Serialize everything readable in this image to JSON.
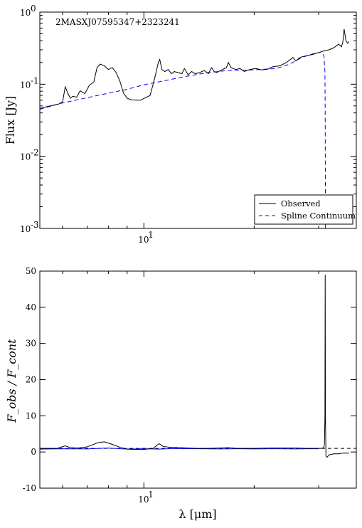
{
  "chart_data": [
    {
      "type": "line",
      "annotation": "2MASXJ07595347+2323241",
      "ylabel": "Flux [Jy]",
      "xscale": "log",
      "yscale": "log",
      "xlim": [
        5.2,
        38
      ],
      "ylim": [
        0.001,
        1
      ],
      "x_ticks": [
        10
      ],
      "x_tick_labels": [
        "10¹"
      ],
      "y_ticks": [
        0.001,
        0.01,
        0.1,
        1
      ],
      "y_tick_labels": [
        [
          "10",
          "-3"
        ],
        [
          "10",
          "-2"
        ],
        [
          "10",
          "-1"
        ],
        [
          "10",
          "0"
        ]
      ],
      "legend": "bottom-right",
      "series": [
        {
          "name": "Observed",
          "color": "#000000",
          "style": "solid",
          "x": [
            5.2,
            5.45,
            5.55,
            5.65,
            5.75,
            5.85,
            6.0,
            6.1,
            6.2,
            6.3,
            6.4,
            6.55,
            6.7,
            6.9,
            7.1,
            7.3,
            7.45,
            7.6,
            7.8,
            8.0,
            8.2,
            8.4,
            8.6,
            8.8,
            9.0,
            9.2,
            9.5,
            9.8,
            10.1,
            10.4,
            10.7,
            10.95,
            11.05,
            11.2,
            11.4,
            11.65,
            11.9,
            12.1,
            12.4,
            12.7,
            12.9,
            13.2,
            13.5,
            13.8,
            14.2,
            14.6,
            15.0,
            15.3,
            15.55,
            15.8,
            16.2,
            16.8,
            17.0,
            17.3,
            17.8,
            18.3,
            18.8,
            19.5,
            20.2,
            21.0,
            21.8,
            22.5,
            23.5,
            24.5,
            25.5,
            26.0,
            26.5,
            27.0,
            28.0,
            29.0,
            30.0,
            31.0,
            32.0,
            33.0,
            34.0,
            34.6,
            34.9,
            35.2,
            35.6,
            36.0,
            36.3
          ],
          "y": [
            0.046,
            0.049,
            0.05,
            0.051,
            0.052,
            0.053,
            0.057,
            0.092,
            0.075,
            0.064,
            0.068,
            0.066,
            0.081,
            0.074,
            0.097,
            0.107,
            0.17,
            0.19,
            0.18,
            0.16,
            0.17,
            0.145,
            0.11,
            0.075,
            0.064,
            0.061,
            0.06,
            0.06,
            0.065,
            0.07,
            0.12,
            0.2,
            0.22,
            0.16,
            0.15,
            0.16,
            0.14,
            0.15,
            0.145,
            0.14,
            0.165,
            0.135,
            0.15,
            0.14,
            0.145,
            0.155,
            0.14,
            0.17,
            0.15,
            0.145,
            0.155,
            0.17,
            0.2,
            0.17,
            0.16,
            0.165,
            0.15,
            0.16,
            0.165,
            0.158,
            0.162,
            0.175,
            0.18,
            0.2,
            0.235,
            0.21,
            0.23,
            0.24,
            0.25,
            0.26,
            0.275,
            0.29,
            0.3,
            0.32,
            0.36,
            0.33,
            0.38,
            0.58,
            0.4,
            0.37,
            0.39
          ]
        },
        {
          "name": "Spline Continuum",
          "color": "#0000ff",
          "style": "dashed",
          "x": [
            5.2,
            6.0,
            7.0,
            8.0,
            9.0,
            10.0,
            11.0,
            12.0,
            13.0,
            15.0,
            17.0,
            20.0,
            23.0,
            25.0,
            27.0,
            29.0,
            30.5,
            31.0,
            31.2,
            31.25,
            31.28,
            31.3
          ],
          "y": [
            0.045,
            0.055,
            0.065,
            0.075,
            0.085,
            0.098,
            0.108,
            0.118,
            0.128,
            0.145,
            0.155,
            0.158,
            0.165,
            0.19,
            0.235,
            0.265,
            0.28,
            0.25,
            0.15,
            0.04,
            0.005,
            0.001
          ]
        }
      ]
    },
    {
      "type": "line",
      "xlabel": "λ [μm]",
      "ylabel": "F_obs / F_cont",
      "xscale": "log",
      "xlim": [
        5.2,
        38
      ],
      "ylim": [
        -10,
        50
      ],
      "x_ticks": [
        10
      ],
      "x_tick_labels": [
        "10¹"
      ],
      "y_ticks": [
        -10,
        0,
        10,
        20,
        30,
        40,
        50
      ],
      "y_tick_labels": [
        "-10",
        "0",
        "10",
        "20",
        "30",
        "40",
        "50"
      ],
      "reference_line": 1,
      "series": [
        {
          "name": "Observed",
          "color": "#000000",
          "style": "solid",
          "x": [
            5.2,
            5.8,
            6.1,
            6.3,
            6.6,
            7.0,
            7.5,
            7.8,
            8.2,
            8.6,
            9.0,
            9.5,
            10.0,
            10.6,
            11.0,
            11.3,
            11.8,
            12.5,
            13.2,
            14.0,
            15.0,
            16.0,
            17.0,
            18.0,
            20.0,
            22.0,
            24.0,
            26.0,
            28.0,
            29.5,
            30.5,
            31.0,
            31.1,
            31.2,
            31.25,
            31.3,
            31.4,
            31.6,
            32.0,
            33.0,
            34.0,
            35.0,
            36.3
          ],
          "y": [
            1.0,
            1.0,
            1.7,
            1.2,
            1.1,
            1.4,
            2.6,
            2.8,
            2.1,
            1.3,
            0.8,
            0.7,
            0.7,
            1.0,
            2.3,
            1.5,
            1.3,
            1.2,
            1.1,
            1.0,
            1.0,
            1.1,
            1.2,
            1.0,
            1.0,
            1.1,
            1.1,
            1.1,
            1.0,
            1.0,
            1.0,
            1.2,
            2.0,
            10.0,
            49.0,
            10.0,
            -1.0,
            -1.5,
            -0.8,
            -0.5,
            -0.5,
            -0.3,
            -0.3
          ]
        },
        {
          "name": "Spline Continuum",
          "color": "#0000ff",
          "style": "solid",
          "x": [
            5.2,
            6.0,
            7.0,
            8.0,
            9.0,
            10.0,
            11.0,
            12.0,
            14.0,
            16.0,
            18.0,
            20.0,
            23.0,
            26.0,
            28.0,
            30.0
          ],
          "y": [
            0.8,
            0.9,
            0.85,
            1.1,
            0.8,
            0.9,
            0.8,
            0.95,
            0.9,
            0.85,
            0.9,
            0.85,
            0.9,
            0.85,
            0.9,
            0.9
          ]
        }
      ]
    }
  ]
}
